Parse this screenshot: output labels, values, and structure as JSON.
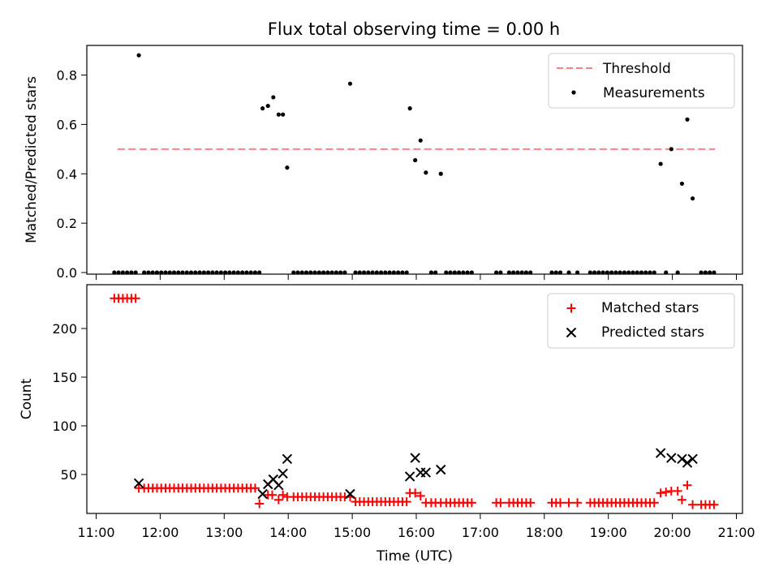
{
  "title": "Flux total observing time = 0.00 h",
  "colors": {
    "threshold": "#ff7f7f",
    "measurements": "#000000",
    "matched": "#ff0000",
    "predicted": "#000000"
  },
  "chart_data": [
    {
      "type": "scatter",
      "ylabel": "Matched/Predicted stars",
      "xlim": [
        "11:00",
        "21:00"
      ],
      "ylim": [
        0,
        0.92
      ],
      "yticks": [
        0.0,
        0.2,
        0.4,
        0.6,
        0.8
      ],
      "yticklabels": [
        "0.0",
        "0.2",
        "0.4",
        "0.6",
        "0.8"
      ],
      "legend_position": "top-right",
      "threshold": {
        "name": "Threshold",
        "value": 0.5,
        "x_range": [
          "11:20",
          "20:40"
        ],
        "style": "dashed"
      },
      "series": [
        {
          "name": "Measurements",
          "marker": "dot",
          "points": [
            [
              "11:17",
              0
            ],
            [
              "11:21",
              0
            ],
            [
              "11:25",
              0
            ],
            [
              "11:29",
              0
            ],
            [
              "11:33",
              0
            ],
            [
              "11:37",
              0
            ],
            [
              "11:40",
              0.88
            ],
            [
              "11:45",
              0
            ],
            [
              "11:49",
              0
            ],
            [
              "11:53",
              0
            ],
            [
              "11:57",
              0
            ],
            [
              "12:01",
              0
            ],
            [
              "12:05",
              0
            ],
            [
              "12:09",
              0
            ],
            [
              "12:13",
              0
            ],
            [
              "12:17",
              0
            ],
            [
              "12:21",
              0
            ],
            [
              "12:25",
              0
            ],
            [
              "12:29",
              0
            ],
            [
              "12:33",
              0
            ],
            [
              "12:37",
              0
            ],
            [
              "12:41",
              0
            ],
            [
              "12:45",
              0
            ],
            [
              "12:49",
              0
            ],
            [
              "12:53",
              0
            ],
            [
              "12:57",
              0
            ],
            [
              "13:01",
              0
            ],
            [
              "13:05",
              0
            ],
            [
              "13:09",
              0
            ],
            [
              "13:13",
              0
            ],
            [
              "13:17",
              0
            ],
            [
              "13:21",
              0
            ],
            [
              "13:25",
              0
            ],
            [
              "13:29",
              0
            ],
            [
              "13:33",
              0
            ],
            [
              "13:36",
              0.665
            ],
            [
              "13:41",
              0.675
            ],
            [
              "13:46",
              0.71
            ],
            [
              "13:51",
              0.64
            ],
            [
              "13:55",
              0.64
            ],
            [
              "13:59",
              0.425
            ],
            [
              "14:05",
              0
            ],
            [
              "14:09",
              0
            ],
            [
              "14:13",
              0
            ],
            [
              "14:17",
              0
            ],
            [
              "14:21",
              0
            ],
            [
              "14:25",
              0
            ],
            [
              "14:29",
              0
            ],
            [
              "14:33",
              0
            ],
            [
              "14:37",
              0
            ],
            [
              "14:41",
              0
            ],
            [
              "14:45",
              0
            ],
            [
              "14:49",
              0
            ],
            [
              "14:53",
              0
            ],
            [
              "14:58",
              0.765
            ],
            [
              "15:03",
              0
            ],
            [
              "15:07",
              0
            ],
            [
              "15:11",
              0
            ],
            [
              "15:15",
              0
            ],
            [
              "15:19",
              0
            ],
            [
              "15:23",
              0
            ],
            [
              "15:27",
              0
            ],
            [
              "15:31",
              0
            ],
            [
              "15:35",
              0
            ],
            [
              "15:39",
              0
            ],
            [
              "15:43",
              0
            ],
            [
              "15:47",
              0
            ],
            [
              "15:51",
              0
            ],
            [
              "15:54",
              0.665
            ],
            [
              "15:59",
              0.455
            ],
            [
              "16:04",
              0.535
            ],
            [
              "16:09",
              0.405
            ],
            [
              "16:14",
              0
            ],
            [
              "16:18",
              0
            ],
            [
              "16:23",
              0.4
            ],
            [
              "16:28",
              0
            ],
            [
              "16:32",
              0
            ],
            [
              "16:36",
              0
            ],
            [
              "16:40",
              0
            ],
            [
              "16:44",
              0
            ],
            [
              "16:48",
              0
            ],
            [
              "16:52",
              0
            ],
            [
              "17:15",
              0
            ],
            [
              "17:19",
              0
            ],
            [
              "17:27",
              0
            ],
            [
              "17:31",
              0
            ],
            [
              "17:35",
              0
            ],
            [
              "17:39",
              0
            ],
            [
              "17:43",
              0
            ],
            [
              "17:47",
              0
            ],
            [
              "18:07",
              0
            ],
            [
              "18:11",
              0
            ],
            [
              "18:15",
              0
            ],
            [
              "18:23",
              0
            ],
            [
              "18:31",
              0
            ],
            [
              "18:43",
              0
            ],
            [
              "18:47",
              0
            ],
            [
              "18:51",
              0
            ],
            [
              "18:55",
              0
            ],
            [
              "18:59",
              0
            ],
            [
              "19:03",
              0
            ],
            [
              "19:07",
              0
            ],
            [
              "19:11",
              0
            ],
            [
              "19:15",
              0
            ],
            [
              "19:19",
              0
            ],
            [
              "19:23",
              0
            ],
            [
              "19:27",
              0
            ],
            [
              "19:31",
              0
            ],
            [
              "19:35",
              0
            ],
            [
              "19:39",
              0
            ],
            [
              "19:43",
              0
            ],
            [
              "19:49",
              0.44
            ],
            [
              "19:54",
              0
            ],
            [
              "19:59",
              0.5
            ],
            [
              "20:05",
              0
            ],
            [
              "20:09",
              0.36
            ],
            [
              "20:14",
              0.62
            ],
            [
              "20:19",
              0.3
            ],
            [
              "20:27",
              0
            ],
            [
              "20:31",
              0
            ],
            [
              "20:35",
              0
            ],
            [
              "20:39",
              0
            ]
          ]
        }
      ]
    },
    {
      "type": "scatter",
      "xlabel": "Time (UTC)",
      "ylabel": "Count",
      "xlim": [
        "11:00",
        "21:00"
      ],
      "ylim": [
        10,
        245
      ],
      "yticks": [
        50,
        100,
        150,
        200
      ],
      "yticklabels": [
        "50",
        "100",
        "150",
        "200"
      ],
      "xticklabels": [
        "11:00",
        "12:00",
        "13:00",
        "14:00",
        "15:00",
        "16:00",
        "17:00",
        "18:00",
        "19:00",
        "20:00",
        "21:00"
      ],
      "legend_position": "top-right",
      "series": [
        {
          "name": "Matched stars",
          "marker": "plus",
          "points": [
            [
              "11:17",
              231
            ],
            [
              "11:21",
              231
            ],
            [
              "11:25",
              231
            ],
            [
              "11:29",
              231
            ],
            [
              "11:33",
              231
            ],
            [
              "11:37",
              231
            ],
            [
              "11:40",
              36
            ],
            [
              "11:45",
              36
            ],
            [
              "11:49",
              36
            ],
            [
              "11:53",
              36
            ],
            [
              "11:57",
              36
            ],
            [
              "12:01",
              36
            ],
            [
              "12:05",
              36
            ],
            [
              "12:09",
              36
            ],
            [
              "12:13",
              36
            ],
            [
              "12:17",
              36
            ],
            [
              "12:21",
              36
            ],
            [
              "12:25",
              36
            ],
            [
              "12:29",
              36
            ],
            [
              "12:33",
              36
            ],
            [
              "12:37",
              36
            ],
            [
              "12:41",
              36
            ],
            [
              "12:45",
              36
            ],
            [
              "12:49",
              36
            ],
            [
              "12:53",
              36
            ],
            [
              "12:57",
              36
            ],
            [
              "13:01",
              36
            ],
            [
              "13:05",
              36
            ],
            [
              "13:09",
              36
            ],
            [
              "13:13",
              36
            ],
            [
              "13:17",
              36
            ],
            [
              "13:21",
              36
            ],
            [
              "13:25",
              36
            ],
            [
              "13:29",
              36
            ],
            [
              "13:33",
              20
            ],
            [
              "13:41",
              29
            ],
            [
              "13:45",
              29
            ],
            [
              "13:51",
              24
            ],
            [
              "13:55",
              29
            ],
            [
              "13:59",
              27
            ],
            [
              "14:05",
              27
            ],
            [
              "14:09",
              27
            ],
            [
              "14:13",
              27
            ],
            [
              "14:17",
              27
            ],
            [
              "14:21",
              27
            ],
            [
              "14:25",
              27
            ],
            [
              "14:29",
              27
            ],
            [
              "14:33",
              27
            ],
            [
              "14:37",
              27
            ],
            [
              "14:41",
              27
            ],
            [
              "14:45",
              27
            ],
            [
              "14:49",
              27
            ],
            [
              "14:53",
              27
            ],
            [
              "14:58",
              27
            ],
            [
              "15:03",
              22
            ],
            [
              "15:07",
              22
            ],
            [
              "15:11",
              22
            ],
            [
              "15:15",
              22
            ],
            [
              "15:19",
              22
            ],
            [
              "15:23",
              22
            ],
            [
              "15:27",
              22
            ],
            [
              "15:31",
              22
            ],
            [
              "15:35",
              22
            ],
            [
              "15:39",
              22
            ],
            [
              "15:43",
              22
            ],
            [
              "15:47",
              22
            ],
            [
              "15:51",
              22
            ],
            [
              "15:54",
              31
            ],
            [
              "15:59",
              31
            ],
            [
              "16:04",
              28
            ],
            [
              "16:09",
              21
            ],
            [
              "16:14",
              21
            ],
            [
              "16:18",
              21
            ],
            [
              "16:23",
              21
            ],
            [
              "16:28",
              21
            ],
            [
              "16:32",
              21
            ],
            [
              "16:36",
              21
            ],
            [
              "16:40",
              21
            ],
            [
              "16:44",
              21
            ],
            [
              "16:48",
              21
            ],
            [
              "16:52",
              21
            ],
            [
              "17:15",
              21
            ],
            [
              "17:19",
              21
            ],
            [
              "17:27",
              21
            ],
            [
              "17:31",
              21
            ],
            [
              "17:35",
              21
            ],
            [
              "17:39",
              21
            ],
            [
              "17:43",
              21
            ],
            [
              "17:47",
              21
            ],
            [
              "18:07",
              21
            ],
            [
              "18:11",
              21
            ],
            [
              "18:15",
              21
            ],
            [
              "18:23",
              21
            ],
            [
              "18:31",
              21
            ],
            [
              "18:43",
              21
            ],
            [
              "18:47",
              21
            ],
            [
              "18:51",
              21
            ],
            [
              "18:55",
              21
            ],
            [
              "18:59",
              21
            ],
            [
              "19:03",
              21
            ],
            [
              "19:07",
              21
            ],
            [
              "19:11",
              21
            ],
            [
              "19:15",
              21
            ],
            [
              "19:19",
              21
            ],
            [
              "19:23",
              21
            ],
            [
              "19:27",
              21
            ],
            [
              "19:31",
              21
            ],
            [
              "19:35",
              21
            ],
            [
              "19:39",
              21
            ],
            [
              "19:43",
              21
            ],
            [
              "19:49",
              31
            ],
            [
              "19:54",
              32
            ],
            [
              "19:59",
              33
            ],
            [
              "20:05",
              33
            ],
            [
              "20:09",
              24
            ],
            [
              "20:14",
              39
            ],
            [
              "20:19",
              19
            ],
            [
              "20:27",
              19
            ],
            [
              "20:31",
              19
            ],
            [
              "20:35",
              19
            ],
            [
              "20:39",
              19
            ]
          ]
        },
        {
          "name": "Predicted stars",
          "marker": "x",
          "points": [
            [
              "11:40",
              41
            ],
            [
              "13:36",
              30
            ],
            [
              "13:41",
              40
            ],
            [
              "13:46",
              45
            ],
            [
              "13:51",
              39
            ],
            [
              "13:55",
              51
            ],
            [
              "13:59",
              66
            ],
            [
              "14:58",
              30
            ],
            [
              "15:54",
              48
            ],
            [
              "15:59",
              67
            ],
            [
              "16:04",
              52
            ],
            [
              "16:09",
              52
            ],
            [
              "16:23",
              55
            ],
            [
              "19:49",
              72
            ],
            [
              "19:59",
              67
            ],
            [
              "20:09",
              66
            ],
            [
              "20:14",
              62
            ],
            [
              "20:19",
              66
            ]
          ]
        }
      ]
    }
  ]
}
